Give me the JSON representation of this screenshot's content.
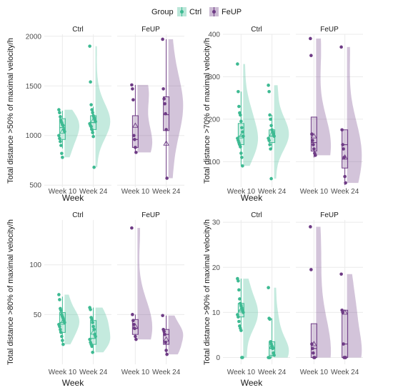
{
  "legend": {
    "title": "Group",
    "items": [
      {
        "label": "Ctrl",
        "color": "#3dba92"
      },
      {
        "label": "FeUP",
        "color": "#6e3b85"
      }
    ]
  },
  "colors": {
    "Ctrl": "#3dba92",
    "FeUP": "#6e3b85",
    "grid": "#ebebeb"
  },
  "chart_data": [
    {
      "type": "raincloud",
      "facets": [
        "Ctrl",
        "FeUP"
      ],
      "categories": [
        "Week 10",
        "Week 24"
      ],
      "xlabel": "Week",
      "ylabel": "Total distance >50% of maximal velocity/h",
      "ylim": [
        480,
        2020
      ],
      "yticks": [
        500,
        1000,
        1500,
        2000
      ],
      "groups": [
        {
          "facet": "Ctrl",
          "week": "Week 10",
          "points": [
            1260,
            1230,
            1190,
            1150,
            1130,
            1110,
            1100,
            1060,
            1040,
            1000,
            970,
            940,
            900,
            820,
            780
          ],
          "box": [
            870,
            960,
            1080,
            1170,
            1250
          ],
          "mean": 1040
        },
        {
          "facet": "Ctrl",
          "week": "Week 24",
          "points": [
            1900,
            1540,
            1310,
            1260,
            1230,
            1200,
            1180,
            1160,
            1140,
            1120,
            1100,
            1090,
            1060,
            1030,
            990,
            680
          ],
          "box": [
            990,
            1060,
            1130,
            1200,
            1290
          ],
          "mean": 1150
        },
        {
          "facet": "FeUP",
          "week": "Week 10",
          "points": [
            1510,
            1470,
            1360,
            1000,
            960,
            880,
            830
          ],
          "box": [
            830,
            880,
            960,
            1200,
            1510
          ],
          "mean": 1100
        },
        {
          "facet": "FeUP",
          "week": "Week 24",
          "points": [
            1970,
            1470,
            1370,
            1320,
            1220,
            1060,
            570
          ],
          "box": [
            570,
            1050,
            1210,
            1390,
            1970
          ],
          "mean": 920
        }
      ]
    },
    {
      "type": "raincloud",
      "facets": [
        "Ctrl",
        "FeUP"
      ],
      "categories": [
        "Week 10",
        "Week 24"
      ],
      "xlabel": "Week",
      "ylabel": "Total distance >70% of maximal velocity/h",
      "ylim": [
        40,
        400
      ],
      "yticks": [
        100,
        200,
        300,
        400
      ],
      "groups": [
        {
          "facet": "Ctrl",
          "week": "Week 10",
          "points": [
            330,
            265,
            230,
            215,
            210,
            195,
            180,
            170,
            160,
            155,
            150,
            145,
            140,
            135,
            120,
            110,
            90
          ],
          "box": [
            90,
            140,
            160,
            190,
            265
          ],
          "mean": 160
        },
        {
          "facet": "Ctrl",
          "week": "Week 24",
          "points": [
            280,
            265,
            210,
            200,
            185,
            175,
            170,
            165,
            160,
            155,
            150,
            140,
            130,
            60
          ],
          "box": [
            130,
            145,
            160,
            175,
            210
          ],
          "mean": 165
        },
        {
          "facet": "FeUP",
          "week": "Week 10",
          "points": [
            390,
            350,
            165,
            150,
            140,
            130,
            120,
            115
          ],
          "box": [
            110,
            125,
            145,
            205,
            205
          ],
          "mean": 160
        },
        {
          "facet": "FeUP",
          "week": "Week 24",
          "points": [
            370,
            175,
            140,
            130,
            110,
            65,
            50
          ],
          "box": [
            45,
            85,
            140,
            175,
            175
          ],
          "mean": 110
        }
      ]
    },
    {
      "type": "raincloud",
      "facets": [
        "Ctrl",
        "FeUP"
      ],
      "categories": [
        "Week 10",
        "Week 24"
      ],
      "xlabel": "Week",
      "ylabel": "Total distance >80% of maximal velocity/h",
      "ylim": [
        0,
        145
      ],
      "yticks": [
        50,
        100
      ],
      "groups": [
        {
          "facet": "Ctrl",
          "week": "Week 10",
          "points": [
            70,
            65,
            56,
            54,
            50,
            48,
            46,
            44,
            42,
            40,
            38,
            35,
            32,
            28,
            24,
            20
          ],
          "box": [
            20,
            32,
            42,
            52,
            68
          ],
          "mean": 42
        },
        {
          "facet": "Ctrl",
          "week": "Week 24",
          "points": [
            57,
            55,
            47,
            45,
            42,
            38,
            35,
            30,
            28,
            25,
            22,
            20,
            18,
            12
          ],
          "box": [
            12,
            20,
            26,
            44,
            57
          ],
          "mean": 32
        },
        {
          "facet": "FeUP",
          "week": "Week 10",
          "points": [
            137,
            50,
            44,
            40,
            36,
            28,
            25
          ],
          "box": [
            28,
            30,
            36,
            45,
            50
          ],
          "mean": 38
        },
        {
          "facet": "FeUP",
          "week": "Week 24",
          "points": [
            49,
            35,
            33,
            30,
            22,
            14,
            10
          ],
          "box": [
            10,
            20,
            30,
            35,
            49
          ],
          "mean": 25
        }
      ]
    },
    {
      "type": "raincloud",
      "facets": [
        "Ctrl",
        "FeUP"
      ],
      "categories": [
        "Week 10",
        "Week 24"
      ],
      "xlabel": "Week",
      "ylabel": "Total distance >90% of maximal velocity/h",
      "ylim": [
        -1.5,
        30.5
      ],
      "yticks": [
        0,
        10,
        20,
        30
      ],
      "groups": [
        {
          "facet": "Ctrl",
          "week": "Week 10",
          "points": [
            17.5,
            17,
            15,
            13,
            12,
            11.5,
            11,
            10.5,
            10,
            9.5,
            9,
            8,
            7,
            6.5,
            6,
            0,
            0
          ],
          "box": [
            6,
            9,
            10.5,
            12,
            17.5
          ],
          "mean": 10.5
        },
        {
          "facet": "Ctrl",
          "week": "Week 24",
          "points": [
            15.5,
            8.7,
            8.5,
            3.5,
            3,
            2.5,
            2,
            1,
            0.5,
            0,
            0,
            0
          ],
          "box": [
            0,
            0.5,
            2,
            3.5,
            8.7
          ],
          "mean": 2.5
        },
        {
          "facet": "FeUP",
          "week": "Week 10",
          "points": [
            29,
            19.5,
            3,
            2,
            1,
            0,
            0
          ],
          "box": [
            0,
            0,
            2,
            7.5,
            7.5
          ],
          "mean": 3
        },
        {
          "facet": "FeUP",
          "week": "Week 24",
          "points": [
            18.5,
            10.5,
            10,
            3,
            0,
            0,
            0
          ],
          "box": [
            0,
            0,
            3,
            10.5,
            10.5
          ],
          "mean": 10
        }
      ]
    }
  ]
}
